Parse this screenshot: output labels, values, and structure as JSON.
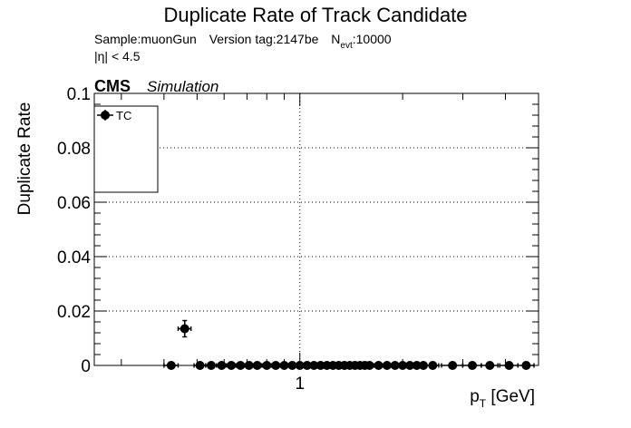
{
  "title": "Duplicate Rate of Track Candidate",
  "info_line_1": {
    "sample": "Sample:muonGun",
    "version": "Version tag:2147be",
    "nevt_label": "N",
    "nevt_sub": "evt",
    "nevt_value": ":10000"
  },
  "info_line_2": "|η| < 4.5",
  "cms_label": "CMS",
  "simulation_label": "Simulation",
  "colors": {
    "TC": "#000000",
    "pT5": "#dd2222",
    "pT3": "#22cc22",
    "T5": "#1133dd",
    "pLS": "#dd22dd"
  },
  "chart_data": {
    "type": "scatter",
    "title": "Duplicate Rate of Track Candidate",
    "xlabel": "p_T [GeV]",
    "ylabel": "Duplicate Rate",
    "xscale": "log",
    "xlim": [
      0.25,
      5.0
    ],
    "ylim": [
      0,
      0.1
    ],
    "yticks": [
      0,
      0.02,
      0.04,
      0.06,
      0.08,
      0.1
    ],
    "ytick_labels": [
      "0",
      "0.02",
      "0.04",
      "0.06",
      "0.08",
      "0.1"
    ],
    "xticks": [
      1
    ],
    "xtick_labels": [
      "1"
    ],
    "grid": true,
    "legend_position": "top-left",
    "series": [
      {
        "name": "TC",
        "marker": "filled-circle",
        "x": [
          0.42,
          0.46,
          0.51,
          0.55,
          0.59,
          0.63,
          0.67,
          0.71,
          0.75,
          0.8,
          0.85,
          0.9,
          0.95,
          1.0,
          1.05,
          1.1,
          1.15,
          1.2,
          1.25,
          1.3,
          1.35,
          1.4,
          1.45,
          1.5,
          1.55,
          1.6,
          1.7,
          1.8,
          1.9,
          2.0,
          2.1,
          2.2,
          2.3,
          2.45,
          2.8,
          3.2,
          3.6,
          4.1,
          4.6
        ],
        "y": [
          0.0,
          0.0135,
          0.0,
          0.0,
          0.0,
          0.0,
          0.0,
          0.0,
          0.0,
          0.0,
          0.0,
          0.0,
          0.0,
          0.0,
          0.0,
          0.0,
          0.0,
          0.0,
          0.0,
          0.0,
          0.0,
          0.0,
          0.0,
          0.0,
          0.0,
          0.0,
          0.0,
          0.0,
          0.0,
          0.0,
          0.0,
          0.0,
          0.0,
          0.0,
          0.0,
          0.0,
          0.0,
          0.0,
          0.0
        ],
        "xerr": [
          0.02,
          0.02,
          0.02,
          0.02,
          0.02,
          0.02,
          0.02,
          0.02,
          0.02,
          0.025,
          0.025,
          0.025,
          0.025,
          0.025,
          0.025,
          0.025,
          0.025,
          0.025,
          0.025,
          0.025,
          0.025,
          0.025,
          0.025,
          0.025,
          0.025,
          0.025,
          0.05,
          0.05,
          0.05,
          0.05,
          0.05,
          0.05,
          0.05,
          0.1,
          0.2,
          0.2,
          0.2,
          0.25,
          0.25
        ],
        "yerr": [
          0.0,
          0.003,
          0.0,
          0.0,
          0.0,
          0.0,
          0.0,
          0.0,
          0.0,
          0.0,
          0.0,
          0.0,
          0.0,
          0.0,
          0.0,
          0.0,
          0.0,
          0.0,
          0.0,
          0.0,
          0.0,
          0.0,
          0.0,
          0.0,
          0.0,
          0.0,
          0.0,
          0.0,
          0.0,
          0.0,
          0.0,
          0.0,
          0.0,
          0.0,
          0.0,
          0.0,
          0.0,
          0.0,
          0.0
        ]
      }
    ]
  }
}
